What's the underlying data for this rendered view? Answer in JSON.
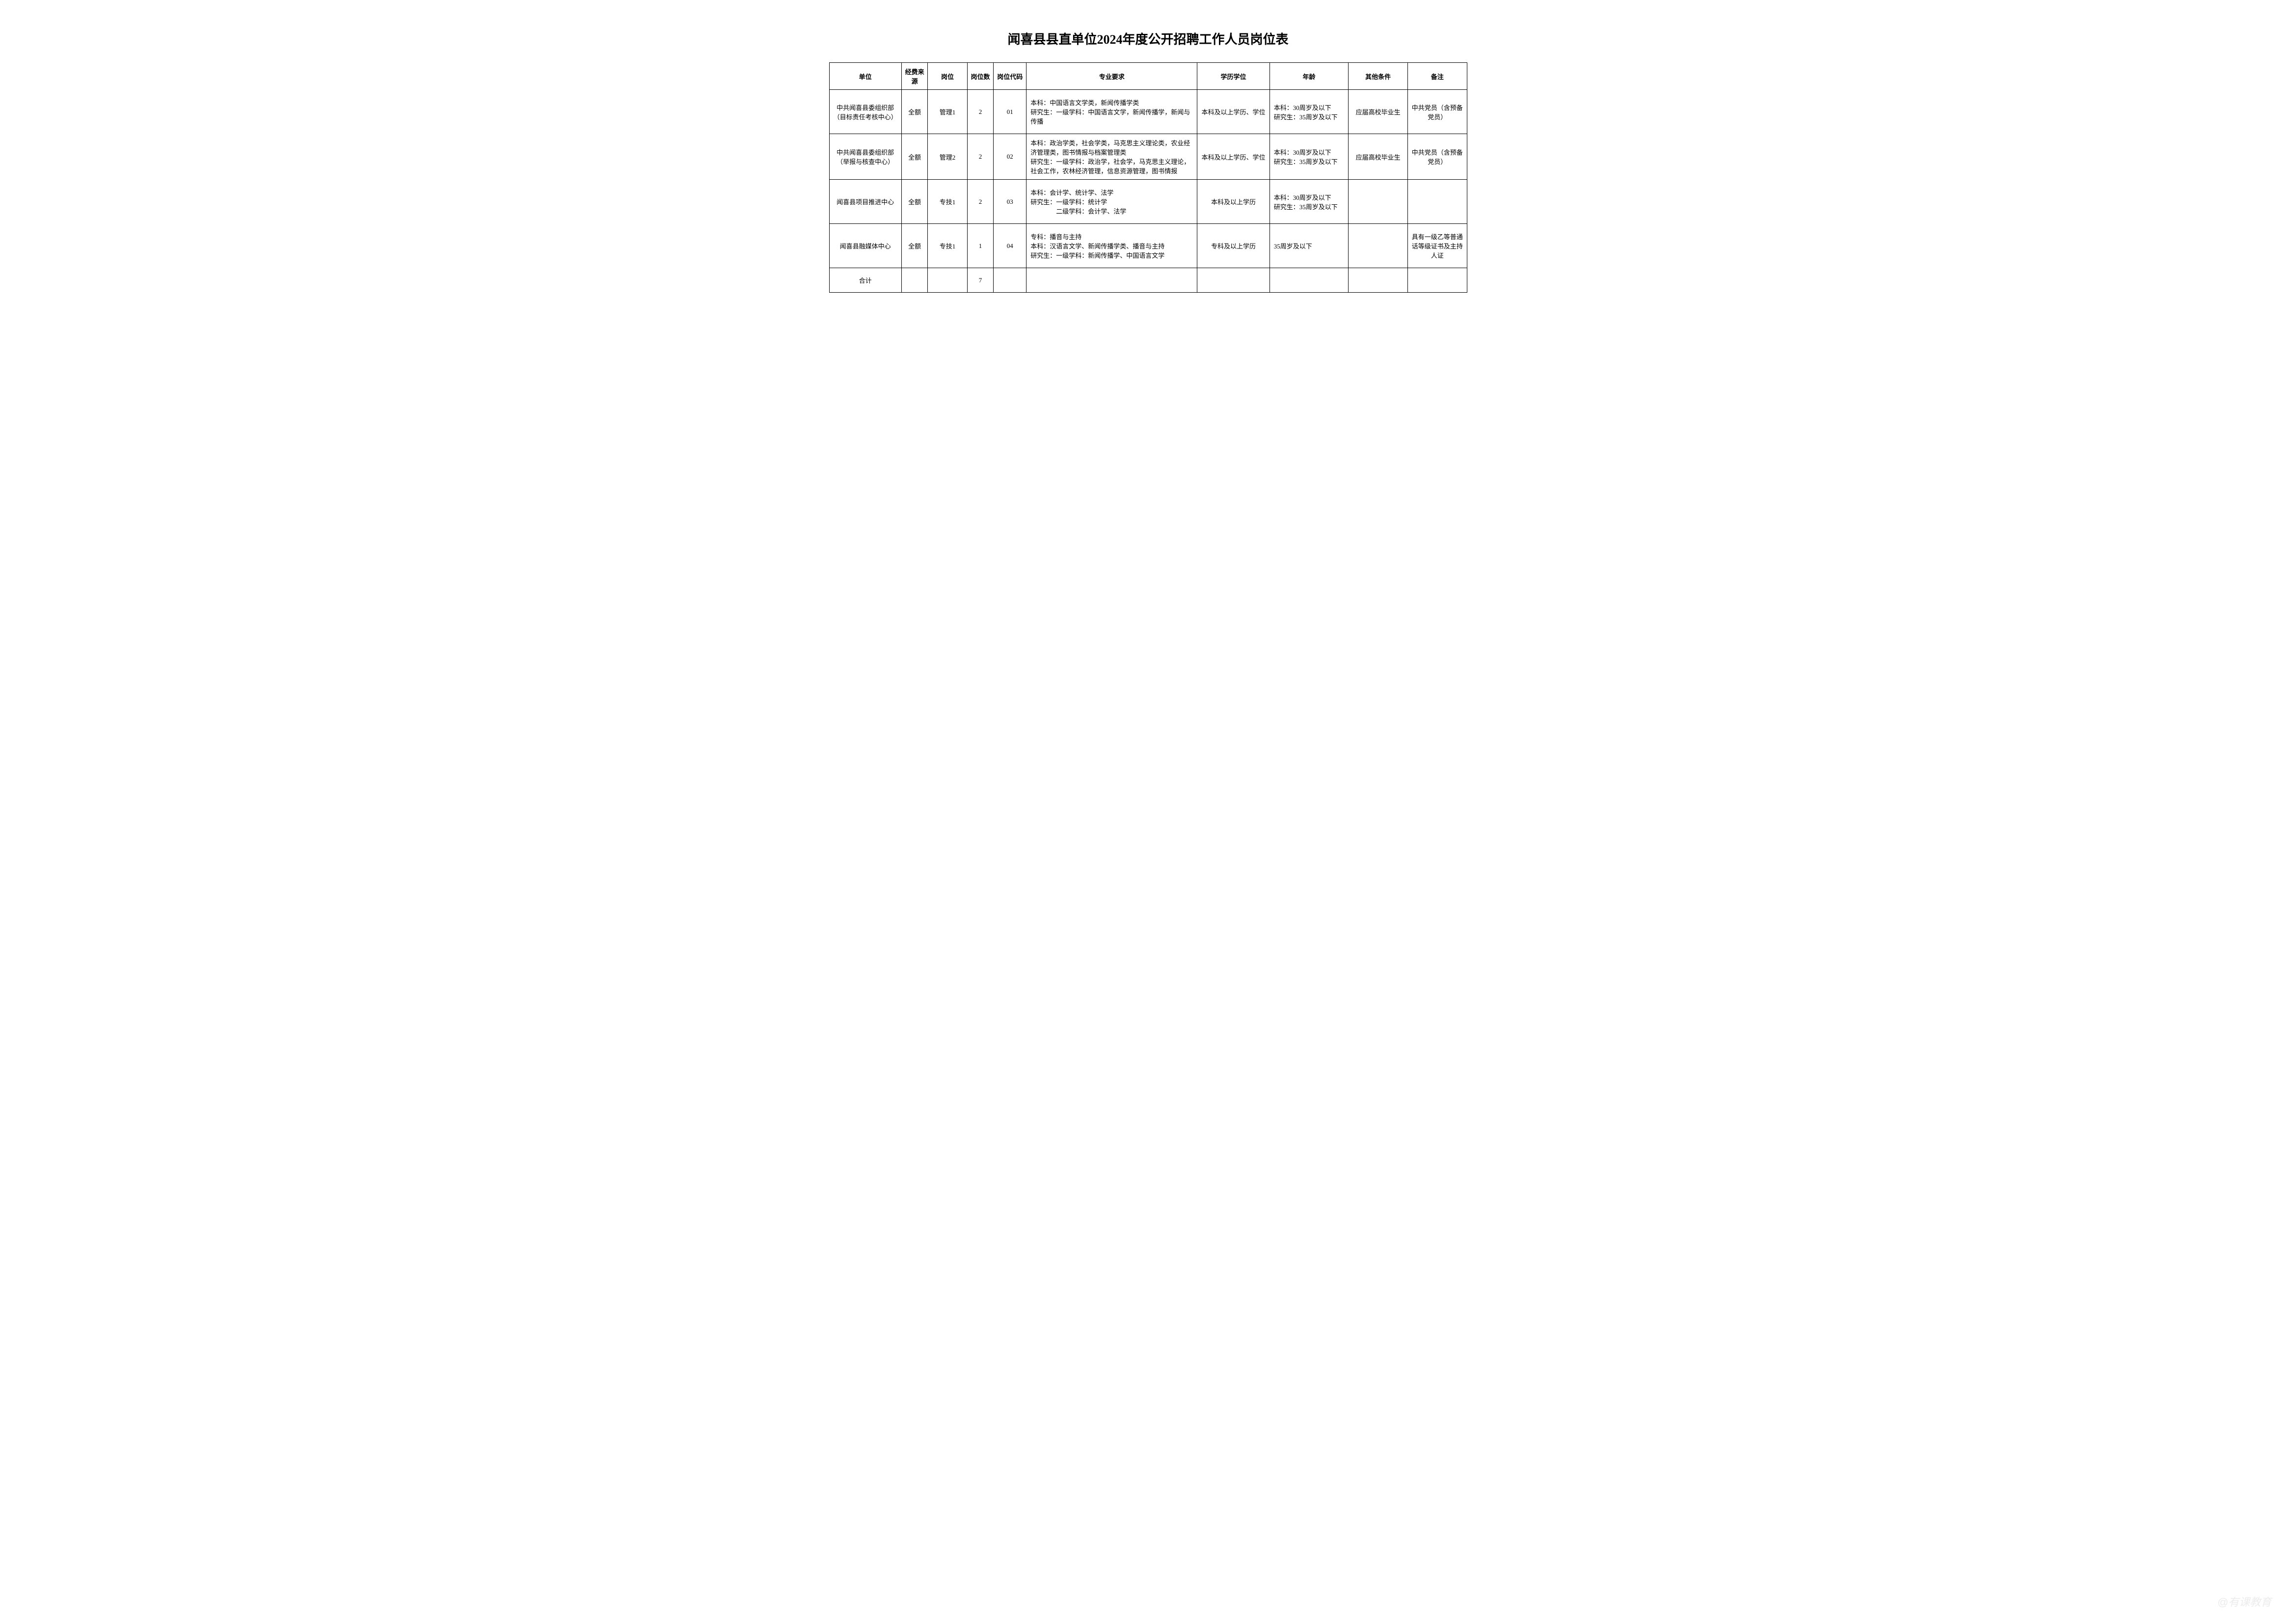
{
  "title": "闻喜县县直单位2024年度公开招聘工作人员岗位表",
  "headers": {
    "unit": "单位",
    "funding": "经费来源",
    "position": "岗位",
    "count": "岗位数",
    "code": "岗位代码",
    "major": "专业要求",
    "education": "学历学位",
    "age": "年龄",
    "other": "其他条件",
    "remark": "备注"
  },
  "rows": [
    {
      "unit": "中共闻喜县委组织部（目标责任考核中心）",
      "funding": "全额",
      "position": "管理1",
      "count": "2",
      "code": "01",
      "major": "本科：中国语言文学类，新闻传播学类\n研究生：一级学科：中国语言文学，新闻传播学，新闻与传播",
      "education": "本科及以上学历、学位",
      "age": "本科：30周岁及以下\n研究生：35周岁及以下",
      "other": "应届高校毕业生",
      "remark": "中共党员（含预备党员）"
    },
    {
      "unit": "中共闻喜县委组织部（举报与核查中心）",
      "funding": "全额",
      "position": "管理2",
      "count": "2",
      "code": "02",
      "major": "本科：政治学类，社会学类，马克思主义理论类，农业经济管理类，图书情报与档案管理类\n研究生：一级学科：政治学，社会学，马克思主义理论，社会工作，农林经济管理，信息资源管理，图书情报",
      "education": "本科及以上学历、学位",
      "age": "本科：30周岁及以下\n研究生：35周岁及以下",
      "other": "应届高校毕业生",
      "remark": "中共党员（含预备党员）"
    },
    {
      "unit": "闻喜县项目推进中心",
      "funding": "全额",
      "position": "专技1",
      "count": "2",
      "code": "03",
      "major": "本科：会计学、统计学、法学\n研究生：一级学科：统计学\n　　　　二级学科：会计学、法学",
      "education": "本科及以上学历",
      "age": "本科：30周岁及以下\n研究生：35周岁及以下",
      "other": "",
      "remark": ""
    },
    {
      "unit": "闻喜县融媒体中心",
      "funding": "全额",
      "position": "专技1",
      "count": "1",
      "code": "04",
      "major": "专科：播音与主持\n本科：汉语言文学、新闻传播学类、播音与主持\n研究生：一级学科：新闻传播学、中国语言文学",
      "education": "专科及以上学历",
      "age": "35周岁及以下",
      "other": "",
      "remark": "具有一级乙等普通话等级证书及主持人证"
    }
  ],
  "total": {
    "label": "合计",
    "count": "7"
  },
  "watermark": "@有课教育"
}
